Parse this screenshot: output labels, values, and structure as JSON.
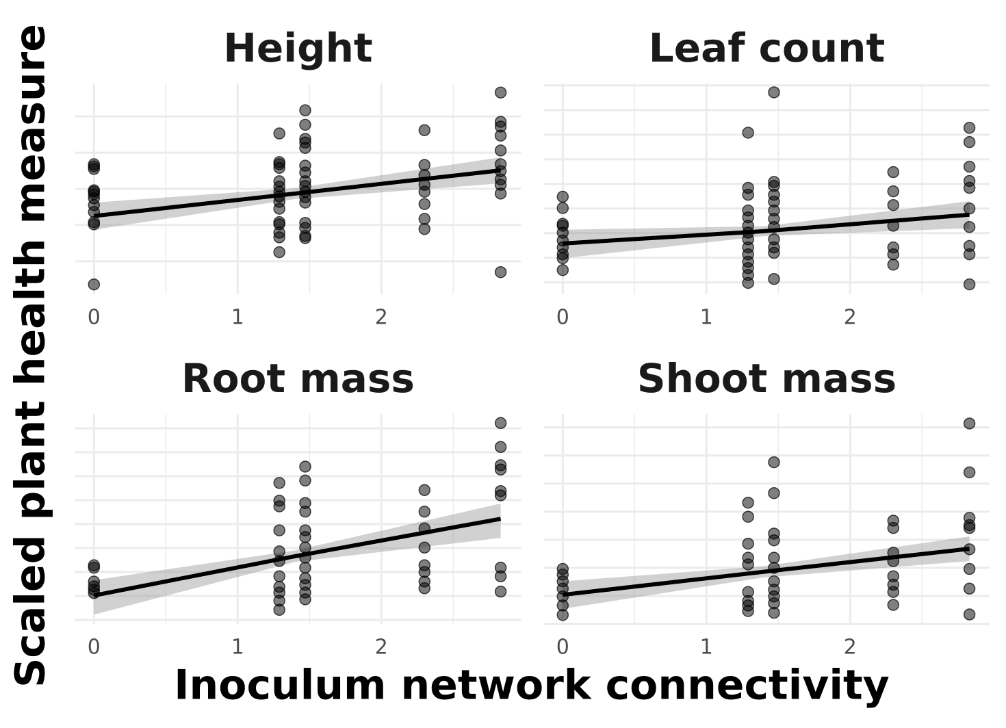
{
  "x_label": "Inoculum network connectivity",
  "y_label": "Scaled plant health measure",
  "chart_data": [
    {
      "type": "scatter",
      "title": "Height",
      "x": [
        0,
        0,
        0,
        0,
        0,
        0,
        0,
        0,
        0,
        0,
        0,
        0,
        1.29,
        1.29,
        1.29,
        1.29,
        1.29,
        1.29,
        1.29,
        1.29,
        1.29,
        1.29,
        1.29,
        1.29,
        1.29,
        1.29,
        1.29,
        1.47,
        1.47,
        1.47,
        1.47,
        1.47,
        1.47,
        1.47,
        1.47,
        1.47,
        1.47,
        1.47,
        1.47,
        1.47,
        1.47,
        1.47,
        1.47,
        2.3,
        2.3,
        2.3,
        2.3,
        2.3,
        2.3,
        2.3,
        2.3,
        2.83,
        2.83,
        2.83,
        2.83,
        2.83,
        2.83,
        2.83,
        2.83,
        2.83,
        2.83,
        2.83
      ],
      "y": [
        0.62,
        0.68,
        0.55,
        -0.08,
        -0.04,
        -0.15,
        -0.26,
        -0.45,
        -0.64,
        -0.92,
        -0.98,
        -2.64,
        1.53,
        0.74,
        0.68,
        0.58,
        0.21,
        0.06,
        -0.08,
        -0.21,
        -0.36,
        -0.55,
        -0.92,
        -0.98,
        -1.21,
        -1.34,
        -1.75,
        2.17,
        1.77,
        1.38,
        1.28,
        1.13,
        0.64,
        0.45,
        0.21,
        0.08,
        -0.08,
        -0.23,
        -0.38,
        -0.94,
        -1.08,
        -1.3,
        -1.36,
        1.62,
        0.66,
        0.38,
        0.11,
        -0.08,
        -0.42,
        -0.83,
        -1.11,
        2.66,
        1.85,
        1.72,
        1.47,
        1.06,
        0.68,
        0.49,
        0.26,
        0.11,
        -0.13,
        -2.3
      ],
      "xlim": [
        -0.13,
        2.97
      ],
      "xticks": [
        0,
        1,
        2
      ],
      "x_minor_ticks": [
        0.5,
        1.5,
        2.5
      ],
      "ylim": [
        -2.91,
        2.91
      ],
      "yticks": [
        -2,
        -1,
        0,
        1,
        2
      ],
      "fit": {
        "x": [
          0,
          1.4,
          2.83
        ],
        "y": [
          -0.75,
          -0.13,
          0.51
        ],
        "lower": [
          -1.13,
          -0.28,
          0.15
        ],
        "upper": [
          -0.38,
          0.02,
          0.87
        ]
      }
    },
    {
      "type": "scatter",
      "title": "Leaf count",
      "x": [
        0,
        0,
        0,
        0,
        0,
        0,
        0,
        0,
        0,
        0,
        1.29,
        1.29,
        1.29,
        1.29,
        1.29,
        1.29,
        1.29,
        1.29,
        1.29,
        1.29,
        1.29,
        1.29,
        1.29,
        1.29,
        1.47,
        1.47,
        1.47,
        1.47,
        1.47,
        1.47,
        1.47,
        1.47,
        1.47,
        1.47,
        1.47,
        1.47,
        2.3,
        2.3,
        2.3,
        2.3,
        2.3,
        2.3,
        2.3,
        2.83,
        2.83,
        2.83,
        2.83,
        2.83,
        2.83,
        2.83,
        2.83,
        2.83,
        2.83
      ],
      "y": [
        0.74,
        0.51,
        0.19,
        0.15,
        0.01,
        -0.15,
        -0.29,
        -0.43,
        -0.51,
        -0.75,
        2.04,
        0.92,
        0.78,
        0.46,
        0.32,
        0.15,
        0.01,
        -0.125,
        -0.29,
        -0.43,
        -0.58,
        -0.71,
        -0.85,
        -1.01,
        2.86,
        1.04,
        0.96,
        0.78,
        0.64,
        0.46,
        0.29,
        0.125,
        -0.125,
        -0.29,
        -0.4,
        -0.93,
        1.24,
        0.85,
        0.57,
        0.15,
        -0.29,
        -0.43,
        -0.64,
        2.14,
        1.85,
        1.35,
        1.06,
        0.92,
        0.5,
        0.125,
        -0.26,
        -0.43,
        -1.04
      ],
      "xlim": [
        -0.13,
        2.97
      ],
      "xticks": [
        0,
        1,
        2
      ],
      "x_minor_ticks": [
        0.5,
        1.5,
        2.5
      ],
      "ylim": [
        -1.24,
        3.04
      ],
      "yticks": [
        -1,
        -0.5,
        0,
        0.5,
        1,
        1.5,
        2,
        2.5,
        3
      ],
      "fit": {
        "x": [
          0,
          1.4,
          2.83
        ],
        "y": [
          -0.21,
          0.04,
          0.375
        ],
        "lower": [
          -0.51,
          -0.06,
          0.1
        ],
        "upper": [
          0.07,
          0.14,
          0.65
        ]
      }
    },
    {
      "type": "scatter",
      "title": "Root mass",
      "x": [
        0,
        0,
        0,
        0,
        0,
        0,
        1.29,
        1.29,
        1.29,
        1.29,
        1.29,
        1.29,
        1.29,
        1.29,
        1.29,
        1.29,
        1.29,
        1.47,
        1.47,
        1.47,
        1.47,
        1.47,
        1.47,
        1.47,
        1.47,
        1.47,
        1.47,
        1.47,
        1.47,
        1.47,
        2.3,
        2.3,
        2.3,
        2.3,
        2.3,
        2.3,
        2.3,
        2.3,
        2.83,
        2.83,
        2.83,
        2.83,
        2.83,
        2.83,
        2.83,
        2.83,
        2.83
      ],
      "y": [
        0.14,
        0.09,
        -0.2,
        -0.3,
        -0.37,
        -0.44,
        1.86,
        1.49,
        1.37,
        0.87,
        0.43,
        0.23,
        -0.09,
        -0.31,
        -0.43,
        -0.6,
        -0.79,
        2.2,
        1.91,
        1.44,
        1.26,
        0.87,
        0.73,
        0.51,
        0.3,
        0.09,
        -0.13,
        -0.27,
        -0.43,
        -0.57,
        1.71,
        1.26,
        0.91,
        0.51,
        0.14,
        0,
        -0.2,
        -0.34,
        3.11,
        2.61,
        2.23,
        2.14,
        1.69,
        1.6,
        0.09,
        -0.09,
        -0.41
      ],
      "xlim": [
        -0.13,
        2.97
      ],
      "xticks": [
        0,
        1,
        2
      ],
      "x_minor_ticks": [
        0.5,
        1.5,
        2.5
      ],
      "ylim": [
        -1.086,
        3.3
      ],
      "yticks": [
        -1,
        -0.5,
        0,
        0.5,
        1,
        1.5,
        2,
        2.5,
        3
      ],
      "fit": {
        "x": [
          0,
          1.4,
          2.83
        ],
        "y": [
          -0.49,
          0.33,
          1.11
        ],
        "lower": [
          -0.89,
          0.21,
          0.71
        ],
        "upper": [
          -0.17,
          0.45,
          1.43
        ]
      }
    },
    {
      "type": "scatter",
      "title": "Shoot mass",
      "x": [
        0,
        0,
        0,
        0,
        0,
        0,
        0,
        1.29,
        1.29,
        1.29,
        1.29,
        1.29,
        1.29,
        1.29,
        1.29,
        1.29,
        1.47,
        1.47,
        1.47,
        1.47,
        1.47,
        1.47,
        1.47,
        1.47,
        1.47,
        1.47,
        1.47,
        2.3,
        2.3,
        2.3,
        2.3,
        2.3,
        2.3,
        2.3,
        2.3,
        2.83,
        2.83,
        2.83,
        2.83,
        2.83,
        2.83,
        2.83,
        2.83,
        2.83
      ],
      "y": [
        -0.02,
        -0.12,
        -0.24,
        -0.37,
        -0.51,
        -0.67,
        -0.84,
        1.16,
        0.91,
        0.43,
        0.18,
        0.06,
        -0.43,
        -0.59,
        -0.67,
        -0.77,
        1.88,
        1.33,
        0.61,
        0.49,
        0.18,
        0,
        -0.24,
        -0.39,
        -0.51,
        -0.63,
        -0.8,
        0.84,
        0.71,
        0.27,
        0.12,
        -0.15,
        -0.3,
        -0.43,
        -0.66,
        2.57,
        1.7,
        0.89,
        0.76,
        0.71,
        0.33,
        -0.02,
        -0.37,
        -0.83
      ],
      "xlim": [
        -0.13,
        2.97
      ],
      "xticks": [
        0,
        1,
        2
      ],
      "x_minor_ticks": [
        0.5,
        1.5,
        2.5
      ],
      "ylim": [
        -1.0,
        2.74
      ],
      "yticks": [
        -1,
        -0.5,
        0,
        0.5,
        1,
        1.5,
        2,
        2.5
      ],
      "fit": {
        "x": [
          0,
          1.4,
          2.83
        ],
        "y": [
          -0.48,
          -0.07,
          0.34
        ],
        "lower": [
          -0.73,
          -0.17,
          0.12
        ],
        "upper": [
          -0.24,
          0.03,
          0.56
        ]
      }
    }
  ]
}
